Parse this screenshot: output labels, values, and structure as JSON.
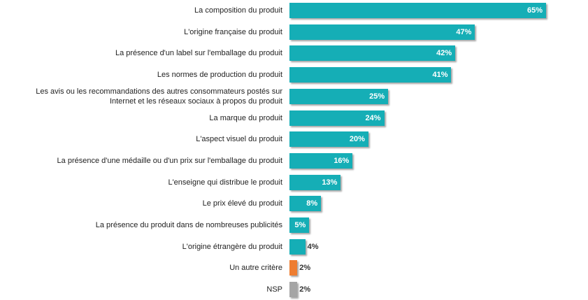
{
  "chart_data": {
    "type": "bar",
    "orientation": "horizontal",
    "title": "",
    "xlabel": "",
    "ylabel": "",
    "xlim": [
      0,
      65
    ],
    "grid": false,
    "categories": [
      "La composition du produit",
      "L'origine française du produit",
      "La présence d'un label sur l'emballage du produit",
      "Les normes de production du produit",
      "Les avis ou les recommandations des autres consommateurs postés sur\nInternet et les réseaux sociaux à propos du produit",
      "La marque du produit",
      "L'aspect visuel du produit",
      "La présence d'une médaille ou d'un prix sur l'emballage du produit",
      "L'enseigne qui distribue le produit",
      "Le prix élevé du produit",
      "La présence du produit dans de nombreuses publicités",
      "L'origine étrangère du produit",
      "Un autre critère",
      "NSP"
    ],
    "values": [
      65,
      47,
      42,
      41,
      25,
      24,
      20,
      16,
      13,
      8,
      5,
      4,
      2,
      2
    ],
    "labels": [
      "65%",
      "47%",
      "42%",
      "41%",
      "25%",
      "24%",
      "20%",
      "16%",
      "13%",
      "8%",
      "5%",
      "4%",
      "2%",
      "2%"
    ],
    "colors": [
      "#15AEB6",
      "#15AEB6",
      "#15AEB6",
      "#15AEB6",
      "#15AEB6",
      "#15AEB6",
      "#15AEB6",
      "#15AEB6",
      "#15AEB6",
      "#15AEB6",
      "#15AEB6",
      "#15AEB6",
      "#EE7D31",
      "#A5A5A5"
    ]
  }
}
